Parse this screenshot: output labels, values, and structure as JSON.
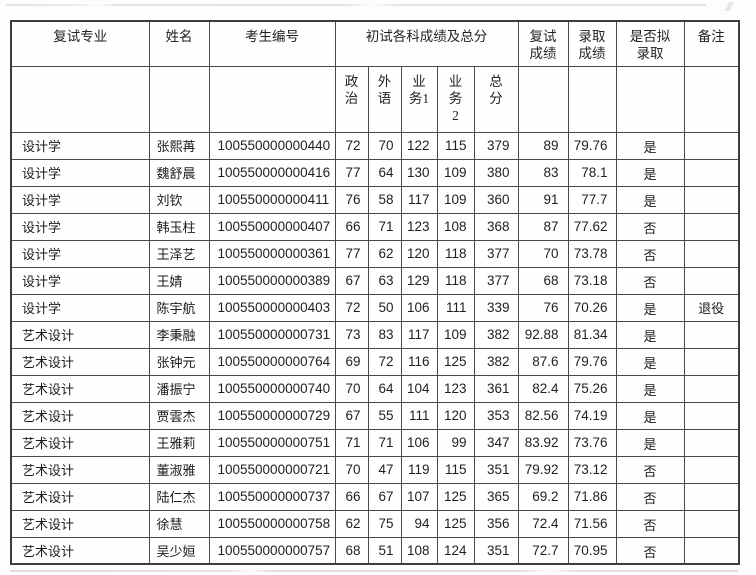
{
  "table": {
    "columns": {
      "major": "复试专业",
      "name": "姓名",
      "candidate_id": "考生编号",
      "initial_scores_group": "初试各科成绩及总分",
      "politics": "政\n治",
      "foreign_language": "外\n语",
      "major_course_1": "业\n务1",
      "major_course_2": "业\n务\n2",
      "total": "总\n分",
      "retest_score": "复试\n成绩",
      "admission_score": "录取\n成绩",
      "admitted": "是否拟\n录取",
      "remark": "备注"
    },
    "rows": [
      {
        "major": "设计学",
        "name": "张熙苒",
        "id": "100550000000440",
        "politics": "72",
        "foreign": "70",
        "major1": "122",
        "major2": "115",
        "total": "379",
        "retest": "89",
        "admission": "79.76",
        "admitted": "是",
        "remark": ""
      },
      {
        "major": "设计学",
        "name": "魏舒晨",
        "id": "100550000000416",
        "politics": "77",
        "foreign": "64",
        "major1": "130",
        "major2": "109",
        "total": "380",
        "retest": "83",
        "admission": "78.1",
        "admitted": "是",
        "remark": ""
      },
      {
        "major": "设计学",
        "name": "刘钦",
        "id": "100550000000411",
        "politics": "76",
        "foreign": "58",
        "major1": "117",
        "major2": "109",
        "total": "360",
        "retest": "91",
        "admission": "77.7",
        "admitted": "是",
        "remark": ""
      },
      {
        "major": "设计学",
        "name": "韩玉柱",
        "id": "100550000000407",
        "politics": "66",
        "foreign": "71",
        "major1": "123",
        "major2": "108",
        "total": "368",
        "retest": "87",
        "admission": "77.62",
        "admitted": "否",
        "remark": ""
      },
      {
        "major": "设计学",
        "name": "王泽艺",
        "id": "100550000000361",
        "politics": "77",
        "foreign": "62",
        "major1": "120",
        "major2": "118",
        "total": "377",
        "retest": "70",
        "admission": "73.78",
        "admitted": "否",
        "remark": ""
      },
      {
        "major": "设计学",
        "name": "王婧",
        "id": "100550000000389",
        "politics": "67",
        "foreign": "63",
        "major1": "129",
        "major2": "118",
        "total": "377",
        "retest": "68",
        "admission": "73.18",
        "admitted": "否",
        "remark": ""
      },
      {
        "major": "设计学",
        "name": "陈宇航",
        "id": "100550000000403",
        "politics": "72",
        "foreign": "50",
        "major1": "106",
        "major2": "111",
        "total": "339",
        "retest": "76",
        "admission": "70.26",
        "admitted": "是",
        "remark": "退役"
      },
      {
        "major": "艺术设计",
        "name": "李秉融",
        "id": "100550000000731",
        "politics": "73",
        "foreign": "83",
        "major1": "117",
        "major2": "109",
        "total": "382",
        "retest": "92.88",
        "admission": "81.34",
        "admitted": "是",
        "remark": ""
      },
      {
        "major": "艺术设计",
        "name": "张钟元",
        "id": "100550000000764",
        "politics": "69",
        "foreign": "72",
        "major1": "116",
        "major2": "125",
        "total": "382",
        "retest": "87.6",
        "admission": "79.76",
        "admitted": "是",
        "remark": ""
      },
      {
        "major": "艺术设计",
        "name": "潘振宁",
        "id": "100550000000740",
        "politics": "70",
        "foreign": "64",
        "major1": "104",
        "major2": "123",
        "total": "361",
        "retest": "82.4",
        "admission": "75.26",
        "admitted": "是",
        "remark": ""
      },
      {
        "major": "艺术设计",
        "name": "贾雲杰",
        "id": "100550000000729",
        "politics": "67",
        "foreign": "55",
        "major1": "111",
        "major2": "120",
        "total": "353",
        "retest": "82.56",
        "admission": "74.19",
        "admitted": "是",
        "remark": ""
      },
      {
        "major": "艺术设计",
        "name": "王雅莉",
        "id": "100550000000751",
        "politics": "71",
        "foreign": "71",
        "major1": "106",
        "major2": "99",
        "total": "347",
        "retest": "83.92",
        "admission": "73.76",
        "admitted": "是",
        "remark": ""
      },
      {
        "major": "艺术设计",
        "name": "董淑雅",
        "id": "100550000000721",
        "politics": "70",
        "foreign": "47",
        "major1": "119",
        "major2": "115",
        "total": "351",
        "retest": "79.92",
        "admission": "73.12",
        "admitted": "否",
        "remark": ""
      },
      {
        "major": "艺术设计",
        "name": "陆仁杰",
        "id": "100550000000737",
        "politics": "66",
        "foreign": "67",
        "major1": "107",
        "major2": "125",
        "total": "365",
        "retest": "69.2",
        "admission": "71.86",
        "admitted": "否",
        "remark": ""
      },
      {
        "major": "艺术设计",
        "name": "徐慧",
        "id": "100550000000758",
        "politics": "62",
        "foreign": "75",
        "major1": "94",
        "major2": "125",
        "total": "356",
        "retest": "72.4",
        "admission": "71.56",
        "admitted": "否",
        "remark": ""
      },
      {
        "major": "艺术设计",
        "name": "吴少姮",
        "id": "100550000000757",
        "politics": "68",
        "foreign": "51",
        "major1": "108",
        "major2": "124",
        "total": "351",
        "retest": "72.7",
        "admission": "70.95",
        "admitted": "否",
        "remark": ""
      }
    ]
  }
}
